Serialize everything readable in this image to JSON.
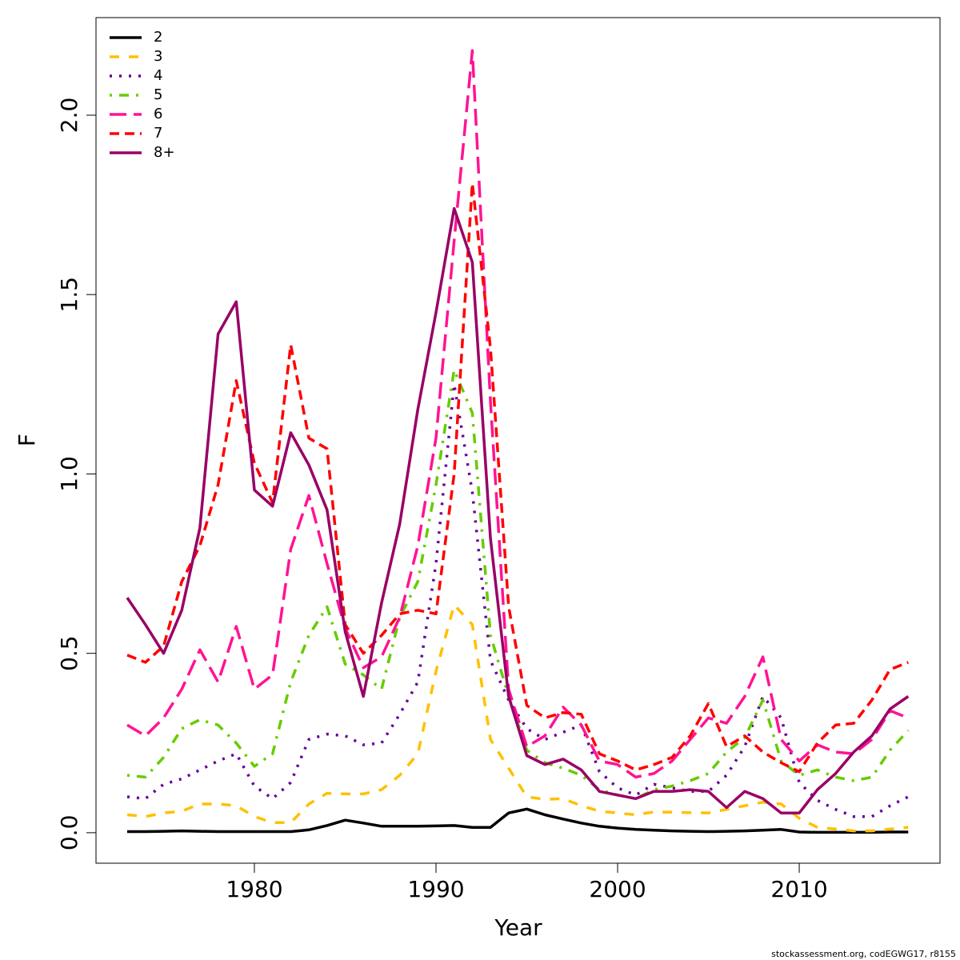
{
  "chart_data": {
    "type": "line",
    "xlabel": "Year",
    "ylabel": "F",
    "footer": "stockassessment.org, codEGWG17, r8155",
    "x": [
      1973,
      1974,
      1975,
      1976,
      1977,
      1978,
      1979,
      1980,
      1981,
      1982,
      1983,
      1984,
      1985,
      1986,
      1987,
      1988,
      1989,
      1990,
      1991,
      1992,
      1993,
      1994,
      1995,
      1996,
      1997,
      1998,
      1999,
      2000,
      2001,
      2002,
      2003,
      2004,
      2005,
      2006,
      2007,
      2008,
      2009,
      2010,
      2011,
      2012,
      2013,
      2014,
      2015,
      2016
    ],
    "xlim": [
      1971.28,
      2017.75
    ],
    "xticks": [
      1980,
      1990,
      2000,
      2010
    ],
    "ylim": [
      -0.085,
      2.272
    ],
    "yticks": [
      {
        "value": 0,
        "label": "0.0"
      },
      {
        "value": 0.5,
        "label": "0.5"
      },
      {
        "value": 1,
        "label": "1.0"
      },
      {
        "value": 1.5,
        "label": "1.5"
      },
      {
        "value": 2,
        "label": "2.0"
      }
    ],
    "legend": "top-left",
    "series": [
      {
        "name": "2",
        "color": "#000000",
        "dash": "solid",
        "values": [
          0.003,
          0.003,
          0.004,
          0.005,
          0.004,
          0.003,
          0.003,
          0.003,
          0.003,
          0.003,
          0.008,
          0.02,
          0.035,
          0.027,
          0.018,
          0.018,
          0.018,
          0.019,
          0.02,
          0.015,
          0.015,
          0.055,
          0.066,
          0.05,
          0.038,
          0.027,
          0.018,
          0.013,
          0.009,
          0.007,
          0.005,
          0.004,
          0.003,
          0.004,
          0.005,
          0.007,
          0.009,
          0.002,
          0.001,
          0.001,
          0.001,
          0.001,
          0.002,
          0.002
        ]
      },
      {
        "name": "3",
        "color": "#ffc000",
        "dash": "dashed",
        "values": [
          0.05,
          0.045,
          0.055,
          0.06,
          0.08,
          0.08,
          0.075,
          0.045,
          0.028,
          0.028,
          0.08,
          0.11,
          0.108,
          0.108,
          0.12,
          0.16,
          0.22,
          0.45,
          0.635,
          0.58,
          0.26,
          0.18,
          0.1,
          0.093,
          0.095,
          0.075,
          0.06,
          0.055,
          0.05,
          0.058,
          0.057,
          0.056,
          0.055,
          0.065,
          0.075,
          0.085,
          0.08,
          0.04,
          0.015,
          0.01,
          0.005,
          0.005,
          0.01,
          0.015
        ]
      },
      {
        "name": "4",
        "color": "#660099",
        "dash": "dotted",
        "values": [
          0.1,
          0.095,
          0.135,
          0.15,
          0.175,
          0.2,
          0.22,
          0.13,
          0.095,
          0.14,
          0.26,
          0.275,
          0.27,
          0.245,
          0.25,
          0.33,
          0.42,
          0.75,
          1.25,
          0.95,
          0.48,
          0.37,
          0.29,
          0.26,
          0.28,
          0.3,
          0.17,
          0.125,
          0.105,
          0.135,
          0.125,
          0.115,
          0.115,
          0.16,
          0.24,
          0.38,
          0.32,
          0.14,
          0.09,
          0.065,
          0.045,
          0.045,
          0.075,
          0.1
        ]
      },
      {
        "name": "5",
        "color": "#66cc00",
        "dash": "dotdash",
        "values": [
          0.16,
          0.155,
          0.21,
          0.29,
          0.315,
          0.3,
          0.25,
          0.185,
          0.22,
          0.42,
          0.55,
          0.63,
          0.47,
          0.44,
          0.4,
          0.6,
          0.7,
          0.97,
          1.29,
          1.17,
          0.55,
          0.38,
          0.23,
          0.195,
          0.18,
          0.16,
          0.12,
          0.105,
          0.095,
          0.12,
          0.13,
          0.145,
          0.165,
          0.225,
          0.265,
          0.37,
          0.2,
          0.16,
          0.175,
          0.155,
          0.145,
          0.155,
          0.23,
          0.285
        ]
      },
      {
        "name": "6",
        "color": "#ff1493",
        "dash": "longdash",
        "values": [
          0.3,
          0.27,
          0.32,
          0.4,
          0.51,
          0.42,
          0.575,
          0.4,
          0.44,
          0.79,
          0.94,
          0.75,
          0.57,
          0.46,
          0.49,
          0.6,
          0.8,
          1.1,
          1.65,
          2.18,
          1.2,
          0.4,
          0.24,
          0.27,
          0.35,
          0.3,
          0.2,
          0.19,
          0.155,
          0.165,
          0.2,
          0.26,
          0.32,
          0.305,
          0.38,
          0.49,
          0.26,
          0.2,
          0.245,
          0.225,
          0.22,
          0.26,
          0.34,
          0.32
        ]
      },
      {
        "name": "7",
        "color": "#ff0000",
        "dash": "twodash",
        "values": [
          0.495,
          0.475,
          0.52,
          0.7,
          0.8,
          0.97,
          1.26,
          1.03,
          0.92,
          1.36,
          1.1,
          1.07,
          0.58,
          0.5,
          0.55,
          0.61,
          0.62,
          0.61,
          1.0,
          1.81,
          1.35,
          0.63,
          0.355,
          0.32,
          0.335,
          0.33,
          0.22,
          0.2,
          0.175,
          0.19,
          0.21,
          0.27,
          0.36,
          0.24,
          0.27,
          0.225,
          0.195,
          0.17,
          0.25,
          0.3,
          0.305,
          0.37,
          0.455,
          0.475
        ]
      },
      {
        "name": "8+",
        "color": "#990066",
        "dash": "solid",
        "values": [
          0.655,
          0.58,
          0.5,
          0.62,
          0.85,
          1.39,
          1.48,
          0.955,
          0.91,
          1.115,
          1.025,
          0.9,
          0.56,
          0.38,
          0.64,
          0.86,
          1.18,
          1.45,
          1.74,
          1.59,
          0.82,
          0.38,
          0.215,
          0.19,
          0.205,
          0.175,
          0.115,
          0.105,
          0.095,
          0.115,
          0.115,
          0.12,
          0.115,
          0.07,
          0.115,
          0.095,
          0.055,
          0.055,
          0.12,
          0.165,
          0.225,
          0.27,
          0.345,
          0.38
        ]
      }
    ]
  }
}
